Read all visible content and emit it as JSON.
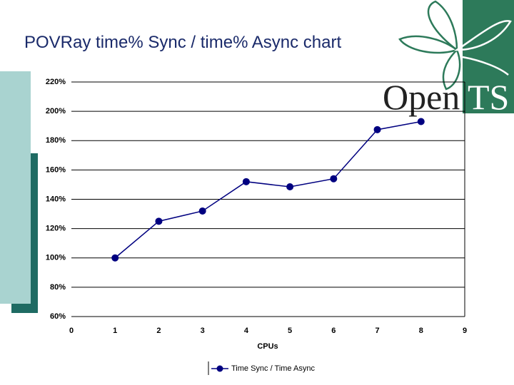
{
  "chart_data": {
    "type": "line",
    "title": "POVRay time% Sync / time% Async chart",
    "x_label": "CPUs",
    "x": [
      1,
      2,
      3,
      4,
      5,
      6,
      7,
      8
    ],
    "series": [
      {
        "name": "Time Sync / Time Async",
        "color": "#000080",
        "values": [
          100,
          125,
          132,
          152,
          148.5,
          154,
          187.5,
          193
        ]
      }
    ],
    "xlim": [
      0,
      9
    ],
    "xticks": [
      0,
      1,
      2,
      3,
      4,
      5,
      6,
      7,
      8,
      9
    ],
    "ylim": [
      60,
      220
    ],
    "yticks": [
      {
        "value": 60,
        "label": "60%"
      },
      {
        "value": 80,
        "label": "80%"
      },
      {
        "value": 100,
        "label": "100%"
      },
      {
        "value": 120,
        "label": "120%"
      },
      {
        "value": 140,
        "label": "140%"
      },
      {
        "value": 160,
        "label": "160%"
      },
      {
        "value": 180,
        "label": "180%"
      },
      {
        "value": 200,
        "label": "200%"
      },
      {
        "value": 220,
        "label": "220%"
      }
    ],
    "grid": true
  },
  "logo": {
    "word": "Open",
    "initials": "TS"
  }
}
